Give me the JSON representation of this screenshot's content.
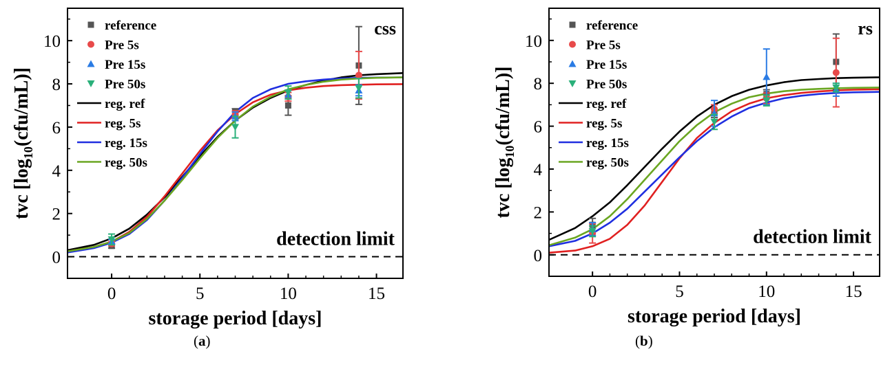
{
  "chart_data": [
    {
      "type": "scatter",
      "panel_label": "a",
      "annotation": "css",
      "note": "detection limit",
      "xlabel": "storage period [days]",
      "ylabel_prefix": "tvc [log",
      "ylabel_sub": "10",
      "ylabel_suffix": "(cfu/mL)]",
      "xlim": [
        -2.5,
        16.5
      ],
      "ylim": [
        -1,
        11.5
      ],
      "xticks": [
        0,
        5,
        10,
        15
      ],
      "yticks": [
        0,
        2,
        4,
        6,
        8,
        10
      ],
      "detection_limit": 0,
      "legend_position": "top-left",
      "series": [
        {
          "name": "reference",
          "marker": "square",
          "color": "#555555",
          "x": [
            0,
            7,
            10,
            14
          ],
          "y": [
            0.5,
            6.7,
            7.0,
            8.85
          ],
          "err": [
            0.1,
            0.15,
            0.45,
            1.8
          ]
        },
        {
          "name": "Pre 5s",
          "marker": "circle",
          "color": "#e84a4a",
          "x": [
            0,
            7,
            10,
            14
          ],
          "y": [
            0.6,
            6.6,
            7.4,
            8.4
          ],
          "err": [
            0.1,
            0.15,
            0.2,
            1.1
          ]
        },
        {
          "name": "Pre 15s",
          "marker": "triangle-up",
          "color": "#2a7be4",
          "x": [
            0,
            7,
            10,
            14
          ],
          "y": [
            0.7,
            6.5,
            7.5,
            7.7
          ],
          "err": [
            0.1,
            0.2,
            0.2,
            0.25
          ]
        },
        {
          "name": "Pre 50s",
          "marker": "triangle-down",
          "color": "#2ab07a",
          "x": [
            0,
            7,
            10,
            14
          ],
          "y": [
            0.8,
            6.0,
            7.6,
            7.8
          ],
          "err": [
            0.25,
            0.5,
            0.3,
            0.45
          ]
        }
      ],
      "regressions": [
        {
          "name": "reg. ref",
          "color": "#000000",
          "x": [
            -2.5,
            -1,
            0,
            1,
            2,
            3,
            4,
            5,
            6,
            7,
            8,
            9,
            10,
            11,
            12,
            13,
            14,
            15,
            16.5
          ],
          "y": [
            0.3,
            0.55,
            0.85,
            1.3,
            1.95,
            2.75,
            3.7,
            4.65,
            5.55,
            6.3,
            6.9,
            7.35,
            7.7,
            7.95,
            8.15,
            8.3,
            8.4,
            8.45,
            8.5
          ]
        },
        {
          "name": "reg. 5s",
          "color": "#e02020",
          "x": [
            -2.5,
            -1,
            0,
            1,
            2,
            3,
            4,
            5,
            6,
            7,
            8,
            9,
            10,
            11,
            12,
            13,
            14,
            15,
            16.5
          ],
          "y": [
            0.25,
            0.45,
            0.7,
            1.15,
            1.85,
            2.8,
            3.85,
            4.9,
            5.85,
            6.6,
            7.15,
            7.5,
            7.7,
            7.82,
            7.9,
            7.94,
            7.96,
            7.98,
            7.99
          ]
        },
        {
          "name": "reg. 15s",
          "color": "#1f2fe0",
          "x": [
            -2.5,
            -1,
            0,
            1,
            2,
            3,
            4,
            5,
            6,
            7,
            8,
            9,
            10,
            11,
            12,
            13,
            14,
            15,
            16.5
          ],
          "y": [
            0.2,
            0.4,
            0.65,
            1.05,
            1.7,
            2.6,
            3.65,
            4.75,
            5.8,
            6.7,
            7.35,
            7.75,
            8.0,
            8.12,
            8.2,
            8.25,
            8.28,
            8.29,
            8.3
          ]
        },
        {
          "name": "reg. 50s",
          "color": "#6aa621",
          "x": [
            -2.5,
            -1,
            0,
            1,
            2,
            3,
            4,
            5,
            6,
            7,
            8,
            9,
            10,
            11,
            12,
            13,
            14,
            15,
            16.5
          ],
          "y": [
            0.25,
            0.45,
            0.7,
            1.1,
            1.75,
            2.6,
            3.55,
            4.55,
            5.5,
            6.3,
            6.95,
            7.4,
            7.75,
            7.95,
            8.1,
            8.2,
            8.25,
            8.28,
            8.3
          ]
        }
      ]
    },
    {
      "type": "scatter",
      "panel_label": "b",
      "annotation": "rs",
      "note": "detection limit",
      "xlabel": "storage period [days]",
      "ylabel_prefix": "tvc [log",
      "ylabel_sub": "10",
      "ylabel_suffix": "(cfu/mL)]",
      "xlim": [
        -2.5,
        16.5
      ],
      "ylim": [
        -1,
        11.5
      ],
      "xticks": [
        0,
        5,
        10,
        15
      ],
      "yticks": [
        0,
        2,
        4,
        6,
        8,
        10
      ],
      "detection_limit": 0,
      "legend_position": "top-left",
      "series": [
        {
          "name": "reference",
          "marker": "square",
          "color": "#555555",
          "x": [
            0,
            7,
            10,
            14
          ],
          "y": [
            1.4,
            6.6,
            7.5,
            9.0
          ],
          "err": [
            0.3,
            0.2,
            0.2,
            1.3
          ]
        },
        {
          "name": "Pre 5s",
          "marker": "circle",
          "color": "#e84a4a",
          "x": [
            0,
            7,
            10,
            14
          ],
          "y": [
            1.0,
            6.8,
            7.3,
            8.5
          ],
          "err": [
            0.45,
            0.2,
            0.25,
            1.6
          ]
        },
        {
          "name": "Pre 15s",
          "marker": "triangle-up",
          "color": "#2a7be4",
          "x": [
            0,
            7,
            10,
            14
          ],
          "y": [
            1.2,
            6.6,
            8.3,
            7.7
          ],
          "err": [
            0.3,
            0.6,
            1.3,
            0.3
          ]
        },
        {
          "name": "Pre 50s",
          "marker": "triangle-down",
          "color": "#2ab07a",
          "x": [
            0,
            7,
            10,
            14
          ],
          "y": [
            1.1,
            6.2,
            7.2,
            7.8
          ],
          "err": [
            0.25,
            0.35,
            0.25,
            0.2
          ]
        }
      ],
      "regressions": [
        {
          "name": "reg. ref",
          "color": "#000000",
          "x": [
            -2.5,
            -1,
            0,
            1,
            2,
            3,
            4,
            5,
            6,
            7,
            8,
            9,
            10,
            11,
            12,
            13,
            14,
            15,
            16.5
          ],
          "y": [
            0.7,
            1.25,
            1.8,
            2.45,
            3.25,
            4.1,
            4.95,
            5.75,
            6.45,
            7.0,
            7.4,
            7.7,
            7.9,
            8.05,
            8.15,
            8.2,
            8.24,
            8.26,
            8.28
          ]
        },
        {
          "name": "reg. 5s",
          "color": "#e02020",
          "x": [
            -2.5,
            -1,
            0,
            1,
            2,
            3,
            4,
            5,
            6,
            7,
            8,
            9,
            10,
            11,
            12,
            13,
            14,
            15,
            16.5
          ],
          "y": [
            0.1,
            0.2,
            0.4,
            0.75,
            1.4,
            2.3,
            3.4,
            4.5,
            5.45,
            6.15,
            6.7,
            7.05,
            7.3,
            7.45,
            7.55,
            7.62,
            7.67,
            7.7,
            7.72
          ]
        },
        {
          "name": "reg. 15s",
          "color": "#1f2fe0",
          "x": [
            -2.5,
            -1,
            0,
            1,
            2,
            3,
            4,
            5,
            6,
            7,
            8,
            9,
            10,
            11,
            12,
            13,
            14,
            15,
            16.5
          ],
          "y": [
            0.4,
            0.65,
            1.0,
            1.5,
            2.15,
            2.95,
            3.75,
            4.55,
            5.3,
            5.95,
            6.45,
            6.85,
            7.1,
            7.3,
            7.42,
            7.5,
            7.55,
            7.58,
            7.6
          ]
        },
        {
          "name": "reg. 50s",
          "color": "#6aa621",
          "x": [
            -2.5,
            -1,
            0,
            1,
            2,
            3,
            4,
            5,
            6,
            7,
            8,
            9,
            10,
            11,
            12,
            13,
            14,
            15,
            16.5
          ],
          "y": [
            0.45,
            0.8,
            1.2,
            1.8,
            2.6,
            3.5,
            4.4,
            5.3,
            6.05,
            6.65,
            7.05,
            7.35,
            7.52,
            7.63,
            7.7,
            7.74,
            7.77,
            7.79,
            7.8
          ]
        }
      ]
    }
  ]
}
